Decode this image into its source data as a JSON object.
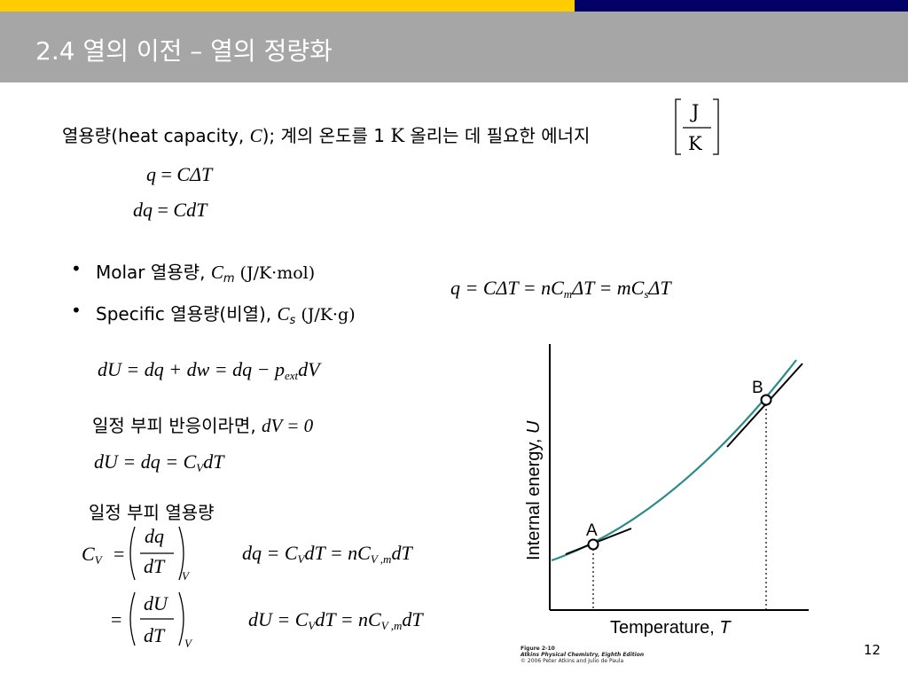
{
  "header": {
    "title": "2.4 열의 이전 – 열의 정량화"
  },
  "definition": {
    "text_before": "열용량(heat capacity, ",
    "symbol": "C",
    "text_after": "); 계의 온도를 1 ",
    "unit_k": "K",
    "text_end": " 올리는 데 필요한 에너지",
    "unit_num": "J",
    "unit_den": "K"
  },
  "eq1": {
    "lhs": "q",
    "rhs": "CΔT"
  },
  "eq2": {
    "lhs": "dq",
    "rhs": "CdT"
  },
  "bullets": [
    {
      "label": "Molar 열용량, ",
      "symbol": "C",
      "sub": "m",
      "unit": " (J/K·mol)"
    },
    {
      "label": "Specific 열용량(비열), ",
      "symbol": "C",
      "sub": "s",
      "unit": " (J/K·g)"
    }
  ],
  "eq_right": {
    "a": "q = CΔT = nC",
    "sub1": "m",
    "b": "ΔT = mC",
    "sub2": "s",
    "c": "ΔT"
  },
  "eq_du": {
    "a": "dU = dq + dw = dq − p",
    "sub": "ext",
    "b": "dV"
  },
  "const_volume": {
    "text": "일정 부피 반응이라면, ",
    "cond": "dV = 0"
  },
  "eq_du_v": {
    "a": "dU = dq = C",
    "sub": "V",
    "b": "dT"
  },
  "cv_heading": "일정 부피 열용량",
  "cv_def": {
    "lhs": "C",
    "lhs_sub": "V",
    "eq": "=",
    "num1": "dq",
    "den1": "dT",
    "sub_v": "V",
    "num2": "dU",
    "den2": "dT"
  },
  "eq_dq": {
    "a": "dq = C",
    "sub1": "V",
    "b": "dT = nC",
    "sub2": "V ,m",
    "c": "dT"
  },
  "eq_du2": {
    "a": "dU = C",
    "sub1": "V",
    "b": "dT = nC",
    "sub2": "V ,m",
    "c": "dT"
  },
  "figure": {
    "xlabel": "Temperature, ",
    "xvar": "T",
    "ylabel": "Internal energy, ",
    "yvar": "U",
    "point_a": "A",
    "point_b": "B",
    "curve_color": "#2e8b8b",
    "caption_line1": "Figure 2-10",
    "caption_line2": "Atkins Physical Chemistry, Eighth Edition",
    "caption_line3": "© 2006 Peter Atkins and Julio de Paula"
  },
  "page_number": "12",
  "colors": {
    "yellow": "#ffcc00",
    "navy": "#000066",
    "title_band": "#a6a6a6"
  }
}
